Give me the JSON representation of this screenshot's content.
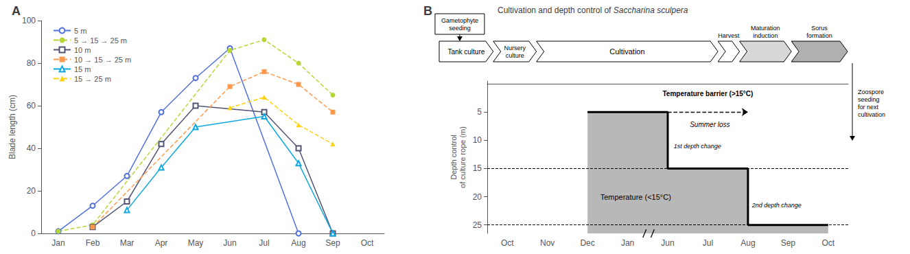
{
  "chart_data": [
    {
      "type": "line",
      "panel_label": "A",
      "categories": [
        "Jan",
        "Feb",
        "Mar",
        "Apr",
        "May",
        "Jun",
        "Jul",
        "Aug",
        "Sep",
        "Oct"
      ],
      "y_label": "Blade length (cm)",
      "ylim": [
        0,
        100
      ],
      "yticks": [
        0,
        20,
        40,
        60,
        80,
        100
      ],
      "grid": false,
      "legend": "upper left",
      "series": [
        {
          "name": "5 m",
          "values": [
            1,
            13,
            27,
            57,
            73,
            87,
            null,
            0,
            null,
            null
          ],
          "line_style": "solid",
          "marker": "open circle"
        },
        {
          "name": "5 → 15 → 25 m",
          "values": [
            1,
            4,
            null,
            null,
            null,
            86,
            91,
            80,
            65,
            null
          ],
          "line_style": "dashed",
          "marker": "circle"
        },
        {
          "name": "10 m",
          "values": [
            null,
            3,
            15,
            42,
            60,
            null,
            57,
            40,
            0,
            null
          ],
          "line_style": "solid",
          "marker": "open square"
        },
        {
          "name": "10 → 15 → 25 m",
          "values": [
            null,
            3,
            null,
            null,
            null,
            69,
            76,
            70,
            57,
            null
          ],
          "line_style": "dashed",
          "marker": "square"
        },
        {
          "name": "15 m",
          "values": [
            null,
            null,
            11,
            31,
            50,
            null,
            55,
            33,
            0,
            null
          ],
          "line_style": "solid",
          "marker": "open triangle"
        },
        {
          "name": "15 → 25 m",
          "values": [
            null,
            null,
            null,
            null,
            null,
            59,
            64,
            51,
            42,
            null
          ],
          "line_style": "dashed",
          "marker": "triangle"
        }
      ]
    },
    {
      "type": "step",
      "panel_label": "B",
      "title": "Cultivation and depth control of Saccharina sculpera",
      "title_italic": "Saccharina sculpera",
      "flow_input": "Gametophyte\nseeding",
      "flow_stages": [
        "Tank culture",
        "Nursery\nculture",
        "Cultivation",
        "Harvest",
        "Maturation\ninduction",
        "Sorus\nformation"
      ],
      "flow_output": "Zoospore\nseeding\nfor next\ncultivation",
      "categories": [
        "Oct",
        "Nov",
        "Dec",
        "Jan",
        "Jun",
        "Jul",
        "Aug",
        "Sep",
        "Oct"
      ],
      "y_label": "Depth control\nof culture rope (m)",
      "ylim": [
        26.5,
        -0.5
      ],
      "yticks": [
        5,
        10,
        15,
        20,
        25
      ],
      "grid": false,
      "series": [
        {
          "values": [
            null,
            null,
            5,
            5,
            15,
            15,
            25,
            25,
            25
          ],
          "color": "#000000",
          "line_style": "solid"
        }
      ],
      "reference_lines": [
        15,
        25
      ],
      "barrier": {
        "from": "Jun",
        "to": "Aug",
        "value": 5
      },
      "annotations": [
        "Temperature barrier (>15°C)",
        "Summer loss",
        "1st depth change",
        "Temperature (<15°C)",
        "2nd depth change"
      ]
    }
  ]
}
